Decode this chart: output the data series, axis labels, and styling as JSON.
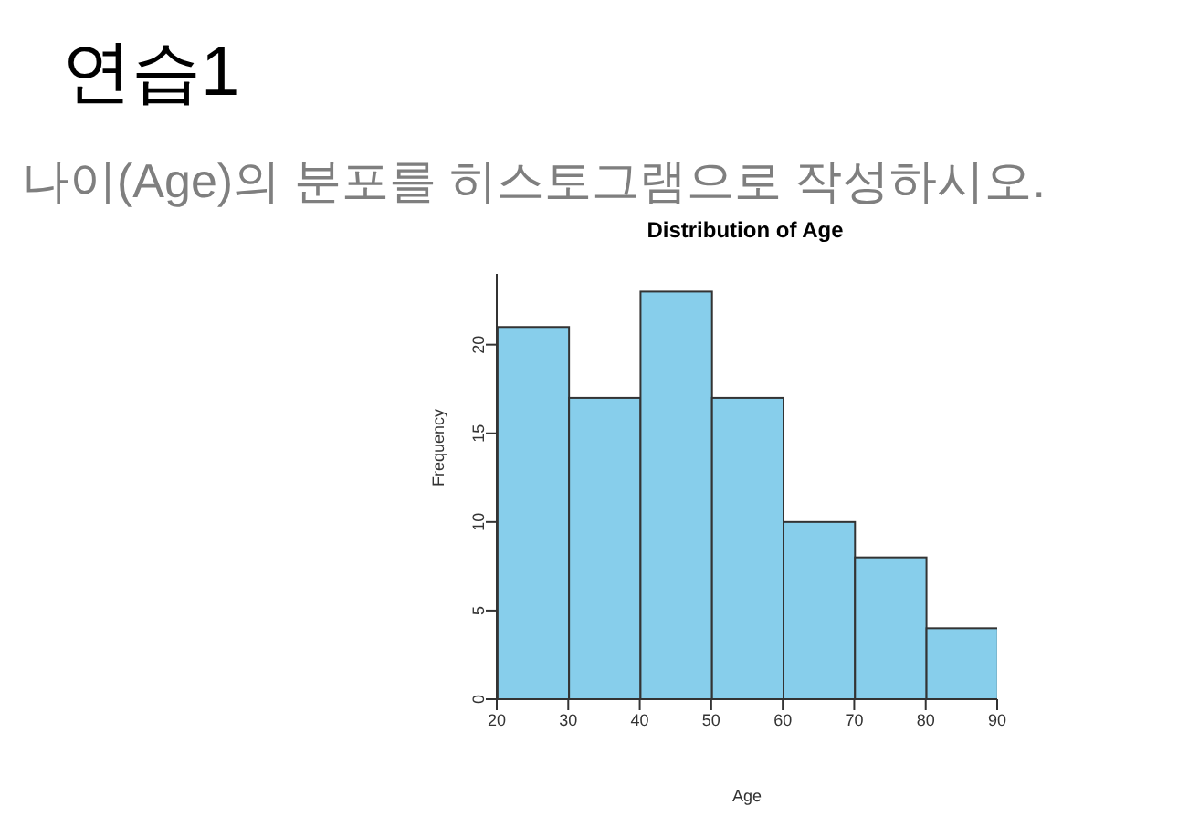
{
  "chart_data": {
    "type": "histogram",
    "title": "Distribution of Age",
    "xlabel": "Age",
    "ylabel": "Frequency",
    "annotations": [
      "연습1",
      "나이(Age)의 분포를 히스토그램으로 작성하시오."
    ],
    "bins": [
      20,
      30,
      40,
      50,
      60,
      70,
      80,
      90
    ],
    "values": [
      21,
      17,
      23,
      17,
      10,
      8,
      4
    ],
    "color": "#87ceeb",
    "xlim": [
      20,
      90
    ],
    "xticks": [
      20,
      30,
      40,
      50,
      60,
      70,
      80,
      90
    ],
    "ylim": [
      0,
      24
    ],
    "yticks": [
      0,
      5,
      10,
      15,
      20
    ]
  }
}
